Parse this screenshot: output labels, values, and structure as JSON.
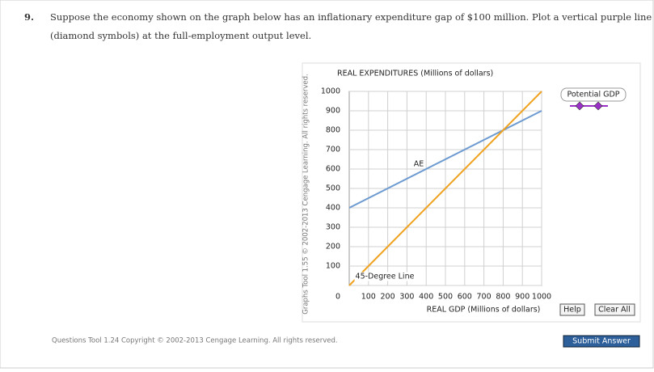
{
  "question": {
    "number": "9.",
    "lines": [
      "Suppose the economy shown on the graph below has an inflationary expenditure gap of $100 million. Plot a vertical purple line",
      "(diamond symbols) at the full-employment output level."
    ]
  },
  "side_note": "Graphs Tool 1.55 © 2002-2013 Cengage Learning. All rights reserved.",
  "chart_data": {
    "type": "line",
    "title": "REAL EXPENDITURES (Millions of dollars)",
    "x_label": "REAL GDP (Millions of dollars)",
    "x": [
      0,
      1000
    ],
    "series": [
      {
        "name": "AE",
        "color": "#6d9bd1",
        "values": [
          400,
          900
        ]
      },
      {
        "name": "45-Degree Line",
        "color": "#f0a21e",
        "values": [
          0,
          1000
        ]
      }
    ],
    "xlim": [
      0,
      1000
    ],
    "ylim": [
      0,
      1000
    ],
    "xticks": [
      100,
      200,
      300,
      400,
      500,
      600,
      700,
      800,
      900,
      1000
    ],
    "yticks": [
      0,
      100,
      200,
      300,
      400,
      500,
      600,
      700,
      800,
      900,
      1000
    ],
    "grid": true
  },
  "tool": {
    "label": "Potential GDP",
    "color": "#9b30c8"
  },
  "buttons": {
    "help": "Help",
    "clear": "Clear All",
    "submit": "Submit Answer"
  },
  "footer": "Questions Tool 1.24 Copyright © 2002-2013 Cengage Learning. All rights reserved."
}
